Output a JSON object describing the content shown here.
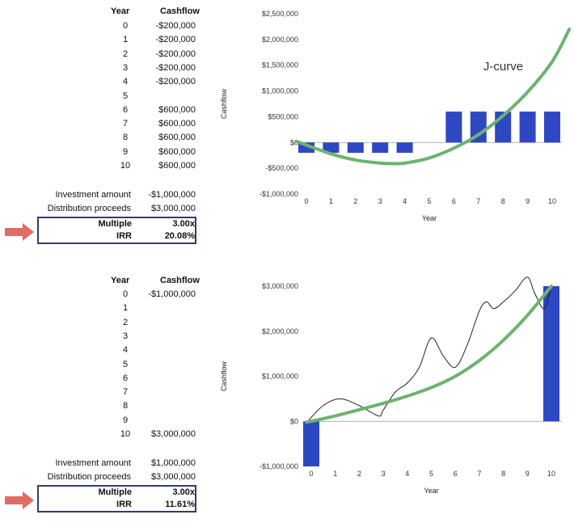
{
  "panels": [
    {
      "table": {
        "year_header": "Year",
        "cashflow_header": "Cashflow",
        "rows": [
          {
            "year": "0",
            "cashflow": "-$200,000"
          },
          {
            "year": "1",
            "cashflow": "-$200,000"
          },
          {
            "year": "2",
            "cashflow": "-$200,000"
          },
          {
            "year": "3",
            "cashflow": "-$200,000"
          },
          {
            "year": "4",
            "cashflow": "-$200,000"
          },
          {
            "year": "5",
            "cashflow": ""
          },
          {
            "year": "6",
            "cashflow": "$600,000"
          },
          {
            "year": "7",
            "cashflow": "$600,000"
          },
          {
            "year": "8",
            "cashflow": "$600,000"
          },
          {
            "year": "9",
            "cashflow": "$600,000"
          },
          {
            "year": "10",
            "cashflow": "$600,000"
          }
        ],
        "investment_label": "Investment amount",
        "investment_value": "-$1,000,000",
        "distribution_label": "Distribution proceeds",
        "distribution_value": "$3,000,000",
        "multiple_label": "Multiple",
        "multiple_value": "3.00x",
        "irr_label": "IRR",
        "irr_value": "20.08%"
      }
    },
    {
      "table": {
        "year_header": "Year",
        "cashflow_header": "Cashflow",
        "rows": [
          {
            "year": "0",
            "cashflow": "-$1,000,000"
          },
          {
            "year": "1",
            "cashflow": ""
          },
          {
            "year": "2",
            "cashflow": ""
          },
          {
            "year": "3",
            "cashflow": ""
          },
          {
            "year": "4",
            "cashflow": ""
          },
          {
            "year": "5",
            "cashflow": ""
          },
          {
            "year": "6",
            "cashflow": ""
          },
          {
            "year": "7",
            "cashflow": ""
          },
          {
            "year": "8",
            "cashflow": ""
          },
          {
            "year": "9",
            "cashflow": ""
          },
          {
            "year": "10",
            "cashflow": "$3,000,000"
          }
        ],
        "investment_label": "Investment amount",
        "investment_value": "$1,000,000",
        "distribution_label": "Distribution proceeds",
        "distribution_value": "$3,000,000",
        "multiple_label": "Multiple",
        "multiple_value": "3.00x",
        "irr_label": "IRR",
        "irr_value": "11.61%"
      }
    }
  ],
  "chart_data": [
    {
      "type": "bar",
      "categories": [
        "0",
        "1",
        "2",
        "3",
        "4",
        "5",
        "6",
        "7",
        "8",
        "9",
        "10"
      ],
      "values": [
        -200000,
        -200000,
        -200000,
        -200000,
        -200000,
        0,
        600000,
        600000,
        600000,
        600000,
        600000
      ],
      "xlabel": "Year",
      "ylabel": "Cashflow",
      "ylim": [
        -1000000,
        2500000
      ],
      "yticks": [
        2500000,
        2000000,
        1500000,
        1000000,
        500000,
        0,
        -500000,
        -1000000
      ],
      "ytick_labels": [
        "$2,500,000",
        "$2,000,000",
        "$1,500,000",
        "$1,000,000",
        "$500,000",
        "$0",
        "-$500,000",
        "-$1,000,000"
      ],
      "bar_color": "#2e47c2",
      "trend_color": "#6db36f",
      "trend_curve": {
        "x": [
          -0.4,
          1,
          2,
          3,
          3.5,
          4,
          5,
          6,
          7,
          8,
          9,
          10,
          10.7
        ],
        "y": [
          20000,
          -220000,
          -340000,
          -400000,
          -410000,
          -400000,
          -300000,
          -110000,
          150000,
          520000,
          980000,
          1570000,
          2200000
        ]
      },
      "annotation": "J-curve",
      "annotation_pos": {
        "x": 7.2,
        "y": 1400000
      },
      "grid": false
    },
    {
      "type": "bar",
      "categories": [
        "0",
        "1",
        "2",
        "3",
        "4",
        "5",
        "6",
        "7",
        "8",
        "9",
        "10"
      ],
      "values": [
        -1000000,
        0,
        0,
        0,
        0,
        0,
        0,
        0,
        0,
        0,
        3000000
      ],
      "xlabel": "Year",
      "ylabel": "Cashflow",
      "ylim": [
        -1000000,
        3000000
      ],
      "yticks": [
        3000000,
        2000000,
        1000000,
        0,
        -1000000
      ],
      "ytick_labels": [
        "$3,000,000",
        "$2,000,000",
        "$1,000,000",
        "$0",
        "-$1,000,000"
      ],
      "bar_color": "#2e47c2",
      "trend_color": "#6db36f",
      "trend_curve": {
        "x": [
          -0.2,
          1,
          2,
          3,
          4,
          5,
          6,
          7,
          8,
          9,
          10
        ],
        "y": [
          -20000,
          120000,
          260000,
          400000,
          560000,
          750000,
          1000000,
          1350000,
          1800000,
          2350000,
          3000000
        ]
      },
      "volatile_curve": {
        "x": [
          -0.2,
          0.5,
          1.2,
          2,
          2.8,
          3,
          3.5,
          4,
          4.5,
          5,
          5.5,
          6,
          6.5,
          7,
          7.3,
          7.6,
          8,
          8.5,
          9,
          9.3,
          9.7,
          10
        ],
        "y": [
          -30000,
          350000,
          500000,
          350000,
          120000,
          250000,
          650000,
          850000,
          1200000,
          1850000,
          1450000,
          1200000,
          1700000,
          2450000,
          2650000,
          2500000,
          2650000,
          2900000,
          3200000,
          2850000,
          2500000,
          3000000
        ]
      },
      "volatile_color": "#222222",
      "grid": false
    }
  ]
}
